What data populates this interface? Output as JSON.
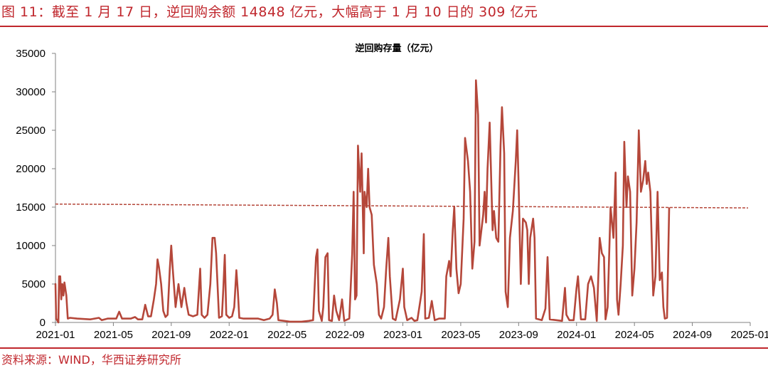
{
  "header": {
    "title": "图 11：截至 1 月 17 日，逆回购余额 14848 亿元，大幅高于 1 月 10 日的 309 亿元"
  },
  "footer": {
    "source": "资料来源：WIND，华西证券研究所"
  },
  "colors": {
    "accent": "#c0272d",
    "series": "#b5473a",
    "reference_line": "#b5473a"
  },
  "chart_data": {
    "type": "line",
    "title": "逆回购存量（亿元）",
    "xlabel": "",
    "ylabel": "",
    "ylim": [
      0,
      35000
    ],
    "y_ticks": [
      "0",
      "5000",
      "10000",
      "15000",
      "20000",
      "25000",
      "30000",
      "35000"
    ],
    "x_ticks": [
      "2021-01",
      "2021-05",
      "2021-09",
      "2022-01",
      "2022-05",
      "2022-09",
      "2023-01",
      "2023-05",
      "2023-09",
      "2024-01",
      "2024-05",
      "2024-09",
      "2025-01"
    ],
    "grid": false,
    "reference_line": {
      "style": "dashed",
      "y_start": 15400,
      "y_end": 14900
    },
    "series": [
      {
        "values": [
          [
            0,
            5000
          ],
          [
            0.05,
            500
          ],
          [
            0.2,
            0
          ],
          [
            0.25,
            6000
          ],
          [
            0.33,
            6000
          ],
          [
            0.4,
            3000
          ],
          [
            0.47,
            5000
          ],
          [
            0.55,
            3500
          ],
          [
            0.62,
            5200
          ],
          [
            0.75,
            3500
          ],
          [
            0.85,
            500
          ],
          [
            1.0,
            600
          ],
          [
            1.5,
            500
          ],
          [
            2.4,
            400
          ],
          [
            3.0,
            600
          ],
          [
            3.2,
            300
          ],
          [
            3.6,
            500
          ],
          [
            4.2,
            500
          ],
          [
            4.4,
            1400
          ],
          [
            4.6,
            500
          ],
          [
            5.2,
            500
          ],
          [
            5.5,
            700
          ],
          [
            5.7,
            400
          ],
          [
            6.0,
            400
          ],
          [
            6.2,
            2300
          ],
          [
            6.4,
            800
          ],
          [
            6.6,
            800
          ],
          [
            6.8,
            3000
          ],
          [
            6.95,
            5000
          ],
          [
            7.05,
            8200
          ],
          [
            7.15,
            7200
          ],
          [
            7.3,
            5000
          ],
          [
            7.45,
            1500
          ],
          [
            7.6,
            700
          ],
          [
            7.75,
            1000
          ],
          [
            7.9,
            7000
          ],
          [
            8.0,
            10000
          ],
          [
            8.1,
            7000
          ],
          [
            8.3,
            2000
          ],
          [
            8.5,
            5000
          ],
          [
            8.7,
            2000
          ],
          [
            8.9,
            4500
          ],
          [
            9.05,
            2500
          ],
          [
            9.2,
            1000
          ],
          [
            9.5,
            800
          ],
          [
            9.8,
            1000
          ],
          [
            10.0,
            7000
          ],
          [
            10.1,
            1000
          ],
          [
            10.3,
            600
          ],
          [
            10.5,
            1000
          ],
          [
            10.7,
            5000
          ],
          [
            10.85,
            11000
          ],
          [
            11.0,
            11000
          ],
          [
            11.1,
            9000
          ],
          [
            11.3,
            600
          ],
          [
            11.5,
            800
          ],
          [
            11.6,
            4500
          ],
          [
            11.7,
            8800
          ],
          [
            11.8,
            1000
          ],
          [
            12.0,
            600
          ],
          [
            12.2,
            800
          ],
          [
            12.35,
            2000
          ],
          [
            12.5,
            6800
          ],
          [
            12.6,
            4000
          ],
          [
            12.7,
            600
          ],
          [
            13.0,
            500
          ],
          [
            13.5,
            500
          ],
          [
            14.0,
            500
          ],
          [
            14.4,
            300
          ],
          [
            14.8,
            500
          ],
          [
            15.0,
            1000
          ],
          [
            15.15,
            4300
          ],
          [
            15.3,
            2500
          ],
          [
            15.4,
            300
          ],
          [
            15.8,
            200
          ],
          [
            16.2,
            100
          ],
          [
            17.0,
            100
          ],
          [
            17.5,
            200
          ],
          [
            17.8,
            300
          ],
          [
            18.0,
            8500
          ],
          [
            18.1,
            9500
          ],
          [
            18.2,
            1500
          ],
          [
            18.4,
            200
          ],
          [
            18.5,
            2000
          ],
          [
            18.65,
            8500
          ],
          [
            18.8,
            9000
          ],
          [
            18.9,
            300
          ],
          [
            19.1,
            200
          ],
          [
            19.25,
            3500
          ],
          [
            19.4,
            1500
          ],
          [
            19.6,
            300
          ],
          [
            19.8,
            3000
          ],
          [
            19.95,
            200
          ],
          [
            20.3,
            500
          ],
          [
            20.5,
            9000
          ],
          [
            20.6,
            17000
          ],
          [
            20.7,
            3000
          ],
          [
            20.8,
            3500
          ],
          [
            20.9,
            23000
          ],
          [
            21.05,
            17000
          ],
          [
            21.15,
            22000
          ],
          [
            21.3,
            9000
          ],
          [
            21.35,
            17000
          ],
          [
            21.5,
            15000
          ],
          [
            21.6,
            20000
          ],
          [
            21.7,
            15000
          ],
          [
            21.85,
            14000
          ],
          [
            22.0,
            7500
          ],
          [
            22.2,
            5000
          ],
          [
            22.35,
            1000
          ],
          [
            22.5,
            500
          ],
          [
            22.7,
            2000
          ],
          [
            22.85,
            7000
          ],
          [
            23.0,
            11000
          ],
          [
            23.1,
            6000
          ],
          [
            23.3,
            500
          ],
          [
            23.5,
            300
          ],
          [
            23.8,
            3000
          ],
          [
            24.0,
            7000
          ],
          [
            24.1,
            2000
          ],
          [
            24.3,
            300
          ],
          [
            24.6,
            600
          ],
          [
            24.8,
            200
          ],
          [
            25.0,
            300
          ],
          [
            25.3,
            4000
          ],
          [
            25.45,
            11500
          ],
          [
            25.55,
            500
          ],
          [
            25.8,
            600
          ],
          [
            26.0,
            2800
          ],
          [
            26.2,
            300
          ],
          [
            26.5,
            500
          ],
          [
            26.9,
            500
          ],
          [
            27.0,
            6000
          ],
          [
            27.2,
            8000
          ],
          [
            27.3,
            6000
          ],
          [
            27.45,
            12000
          ],
          [
            27.55,
            15000
          ],
          [
            27.7,
            7000
          ],
          [
            27.85,
            3800
          ],
          [
            28.0,
            5000
          ],
          [
            28.2,
            13500
          ],
          [
            28.3,
            24000
          ],
          [
            28.5,
            21000
          ],
          [
            28.65,
            17000
          ],
          [
            28.8,
            7000
          ],
          [
            28.95,
            10500
          ],
          [
            29.05,
            31500
          ],
          [
            29.2,
            27000
          ],
          [
            29.3,
            10000
          ],
          [
            29.55,
            14000
          ],
          [
            29.65,
            17000
          ],
          [
            29.75,
            13000
          ],
          [
            29.85,
            20000
          ],
          [
            30.0,
            26000
          ],
          [
            30.2,
            12000
          ],
          [
            30.3,
            14500
          ],
          [
            30.45,
            11000
          ],
          [
            30.6,
            10500
          ],
          [
            30.75,
            23000
          ],
          [
            30.85,
            28000
          ],
          [
            31.0,
            22000
          ],
          [
            31.1,
            4000
          ],
          [
            31.25,
            2000
          ],
          [
            31.4,
            11000
          ],
          [
            31.6,
            14500
          ],
          [
            31.8,
            21000
          ],
          [
            31.9,
            25000
          ],
          [
            32.0,
            18000
          ],
          [
            32.15,
            5000
          ],
          [
            32.3,
            13500
          ],
          [
            32.5,
            13000
          ],
          [
            32.6,
            12000
          ],
          [
            32.7,
            5000
          ],
          [
            32.8,
            11000
          ],
          [
            33.0,
            13500
          ],
          [
            33.1,
            11000
          ],
          [
            33.2,
            500
          ],
          [
            33.6,
            300
          ],
          [
            33.85,
            1800
          ],
          [
            34.0,
            8500
          ],
          [
            34.15,
            400
          ],
          [
            34.6,
            300
          ],
          [
            35.0,
            200
          ],
          [
            35.2,
            4500
          ],
          [
            35.3,
            1000
          ],
          [
            35.5,
            300
          ],
          [
            35.8,
            300
          ],
          [
            36.0,
            4500
          ],
          [
            36.1,
            6000
          ],
          [
            36.3,
            400
          ],
          [
            36.6,
            400
          ],
          [
            36.8,
            5000
          ],
          [
            37.0,
            6000
          ],
          [
            37.2,
            4500
          ],
          [
            37.4,
            200
          ],
          [
            37.6,
            11000
          ],
          [
            37.75,
            9000
          ],
          [
            37.9,
            8500
          ],
          [
            38.0,
            400
          ],
          [
            38.15,
            2000
          ],
          [
            38.35,
            15000
          ],
          [
            38.55,
            11000
          ],
          [
            38.7,
            19500
          ],
          [
            38.8,
            3000
          ],
          [
            38.9,
            1000
          ],
          [
            39.05,
            5000
          ],
          [
            39.2,
            10000
          ],
          [
            39.3,
            23500
          ],
          [
            39.45,
            15000
          ],
          [
            39.55,
            19000
          ],
          [
            39.7,
            17000
          ],
          [
            39.85,
            3500
          ],
          [
            40.0,
            7000
          ],
          [
            40.15,
            13000
          ],
          [
            40.3,
            25000
          ],
          [
            40.45,
            17000
          ],
          [
            40.6,
            18500
          ],
          [
            40.75,
            21000
          ],
          [
            40.85,
            18000
          ],
          [
            40.95,
            19500
          ],
          [
            41.1,
            17000
          ],
          [
            41.3,
            3500
          ],
          [
            41.45,
            6000
          ],
          [
            41.6,
            17000
          ],
          [
            41.75,
            5500
          ],
          [
            41.9,
            6500
          ],
          [
            42.0,
            2000
          ],
          [
            42.1,
            500
          ],
          [
            42.25,
            600
          ],
          [
            42.4,
            14848
          ]
        ]
      }
    ]
  }
}
